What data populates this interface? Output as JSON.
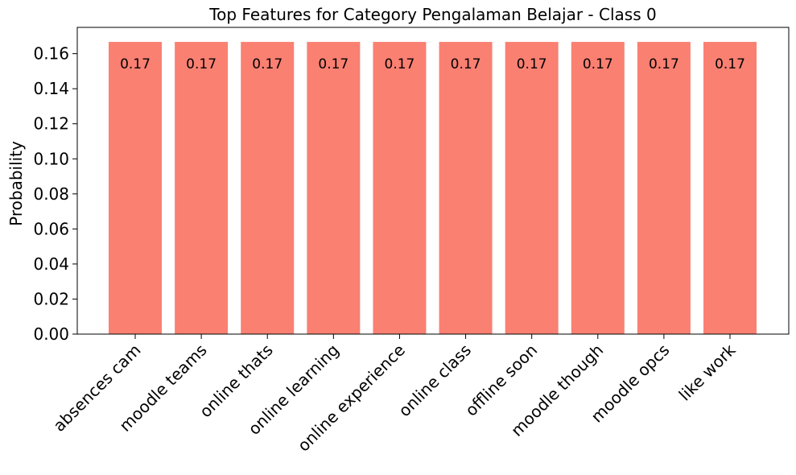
{
  "chart_data": {
    "type": "bar",
    "title": "Top Features for Category Pengalaman Belajar - Class 0",
    "xlabel": "",
    "ylabel": "Probability",
    "categories": [
      "absences cam",
      "moodle teams",
      "online thats",
      "online learning",
      "online experience",
      "online class",
      "offline soon",
      "moodle though",
      "moodle opcs",
      "like work"
    ],
    "values": [
      0.1667,
      0.1667,
      0.1667,
      0.1667,
      0.1667,
      0.1667,
      0.1667,
      0.1667,
      0.1667,
      0.1667
    ],
    "data_labels": [
      "0.17",
      "0.17",
      "0.17",
      "0.17",
      "0.17",
      "0.17",
      "0.17",
      "0.17",
      "0.17",
      "0.17"
    ],
    "ylim": [
      0,
      0.175
    ],
    "yticks": [
      0.0,
      0.02,
      0.04,
      0.06,
      0.08,
      0.1,
      0.12,
      0.14,
      0.16
    ],
    "ytick_labels": [
      "0.00",
      "0.02",
      "0.04",
      "0.06",
      "0.08",
      "0.10",
      "0.12",
      "0.14",
      "0.16"
    ],
    "grid": false,
    "bar_color": "#fa8072",
    "axis_color": "#000000",
    "text_color": "#000000"
  }
}
